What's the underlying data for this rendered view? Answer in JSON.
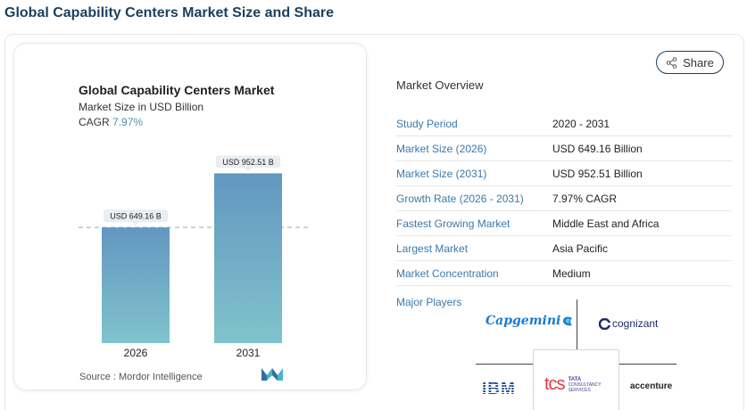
{
  "page_title": "Global Capability Centers Market Size and Share",
  "share_label": "Share",
  "chart": {
    "title": "Global Capability Centers Market",
    "subtitle": "Market Size in USD Billion",
    "cagr_label": "CAGR",
    "cagr_value": "7.97%",
    "source": "Source :  Mordor Intelligence",
    "bar_color_top": "#6297c0",
    "bar_color_bottom": "#80c3cc"
  },
  "chart_data": {
    "type": "bar",
    "title": "Global Capability Centers Market",
    "subtitle": "Market Size in USD Billion",
    "categories": [
      "2026",
      "2031"
    ],
    "values": [
      649.16,
      952.51
    ],
    "data_labels": [
      "USD 649.16 B",
      "USD 952.51 B"
    ],
    "ylim": [
      0,
      1000
    ],
    "grid": false,
    "reference_line_value": 649.16
  },
  "overview": {
    "title": "Market Overview",
    "rows": [
      {
        "label": "Study Period",
        "value": "2020 - 2031"
      },
      {
        "label": "Market Size (2026)",
        "value": "USD 649.16 Billion"
      },
      {
        "label": "Market Size (2031)",
        "value": "USD 952.51 Billion"
      },
      {
        "label": "Growth Rate (2026 - 2031)",
        "value": "7.97% CAGR"
      },
      {
        "label": "Fastest Growing Market",
        "value": "Middle East and Africa"
      },
      {
        "label": "Largest Market",
        "value": "Asia Pacific"
      },
      {
        "label": "Market Concentration",
        "value": "Medium"
      }
    ]
  },
  "players": {
    "label": "Major Players",
    "capgemini": "Capgemini",
    "cognizant": "cognizant",
    "ibm": "IBM",
    "tcs": "tcs",
    "tcs_line1": "TATA",
    "tcs_line2": "CONSULTANCY",
    "tcs_line3": "SERVICES",
    "accenture": "accenture"
  }
}
